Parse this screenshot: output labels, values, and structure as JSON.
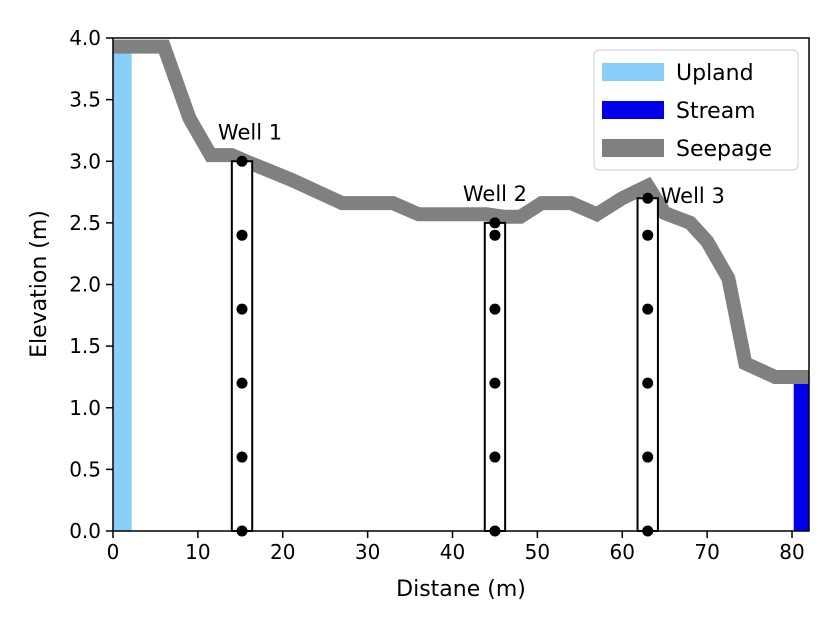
{
  "chart_data": {
    "type": "line",
    "xlabel": "Distane (m)",
    "ylabel": "Elevation (m)",
    "xlim": [
      0,
      82
    ],
    "ylim": [
      0,
      4
    ],
    "x_ticks": [
      0,
      10,
      20,
      30,
      40,
      50,
      60,
      70,
      80
    ],
    "y_ticks": [
      "0.0",
      "0.5",
      "1.0",
      "1.5",
      "2.0",
      "2.5",
      "3.0",
      "3.5",
      "4.0"
    ],
    "legend": {
      "placement": "top-right",
      "entries": [
        {
          "label": "Upland",
          "color": "#87cefa"
        },
        {
          "label": "Stream",
          "color": "#0000ee"
        },
        {
          "label": "Seepage",
          "color": "#808080"
        }
      ]
    },
    "seepage": {
      "name": "Seepage",
      "color": "#808080",
      "x": [
        0,
        6,
        9,
        11.5,
        14,
        16,
        21,
        27,
        33,
        36,
        42,
        44,
        46,
        48,
        50.5,
        54,
        57,
        60,
        63,
        65,
        68,
        70,
        72.5,
        74.5,
        78,
        82
      ],
      "y": [
        3.93,
        3.93,
        3.35,
        3.05,
        3.05,
        2.99,
        2.85,
        2.66,
        2.66,
        2.57,
        2.57,
        2.57,
        2.55,
        2.55,
        2.66,
        2.66,
        2.57,
        2.7,
        2.8,
        2.58,
        2.5,
        2.35,
        2.05,
        1.36,
        1.25,
        1.25
      ]
    },
    "upland": {
      "name": "Upland",
      "color": "#87cefa",
      "x_range": [
        0,
        2.2
      ],
      "top": 3.93
    },
    "stream": {
      "name": "Stream",
      "color": "#0000ee",
      "x_range": [
        80.2,
        82
      ],
      "top": 1.25
    },
    "wells": [
      {
        "label": "Well 1",
        "x": 15.2,
        "top": 3.0,
        "width": 2.4,
        "points": [
          3.0,
          2.4,
          1.8,
          1.2,
          0.6,
          0.0
        ]
      },
      {
        "label": "Well 2",
        "x": 45.0,
        "top": 2.5,
        "width": 2.4,
        "points": [
          2.5,
          2.4,
          1.8,
          1.2,
          0.6,
          0.0
        ]
      },
      {
        "label": "Well 3",
        "x": 63.0,
        "top": 2.7,
        "width": 2.4,
        "points": [
          2.7,
          2.4,
          1.8,
          1.2,
          0.6,
          0.0
        ]
      }
    ]
  }
}
